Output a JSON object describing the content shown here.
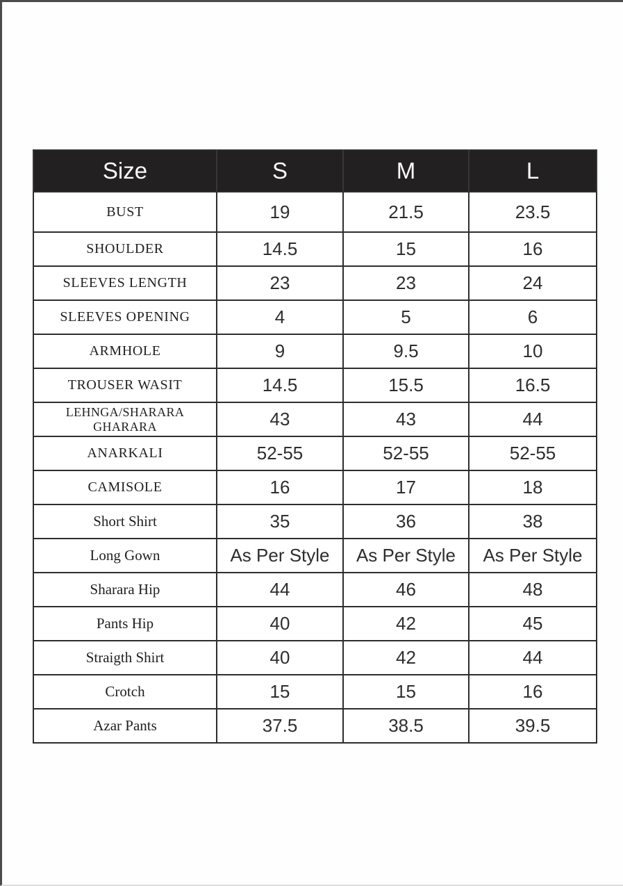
{
  "colors": {
    "page_bg": "#fefefe",
    "page_border": "#4b4b4b",
    "header_bg": "#232021",
    "header_text": "#fafafa",
    "grid_color": "#2d2d2d"
  },
  "table": {
    "header": {
      "columns": [
        "Size",
        "S",
        "M",
        "L"
      ]
    },
    "rows": [
      {
        "label": "BUST",
        "label_style": "caps",
        "values": [
          "19",
          "21.5",
          "23.5"
        ]
      },
      {
        "label": "SHOULDER",
        "label_style": "caps",
        "values": [
          "14.5",
          "15",
          "16"
        ]
      },
      {
        "label": "SLEEVES LENGTH",
        "label_style": "caps",
        "values": [
          "23",
          "23",
          "24"
        ]
      },
      {
        "label": "SLEEVES OPENING",
        "label_style": "caps",
        "values": [
          "4",
          "5",
          "6"
        ]
      },
      {
        "label": "ARMHOLE",
        "label_style": "caps",
        "values": [
          "9",
          "9.5",
          "10"
        ]
      },
      {
        "label": "TROUSER WASIT",
        "label_style": "caps",
        "values": [
          "14.5",
          "15.5",
          "16.5"
        ]
      },
      {
        "label": "LEHNGA/SHARARA\nGHARARA",
        "label_style": "caps-2line",
        "values": [
          "43",
          "43",
          "44"
        ]
      },
      {
        "label": "ANARKALI",
        "label_style": "caps",
        "values": [
          "52-55",
          "52-55",
          "52-55"
        ]
      },
      {
        "label": "CAMISOLE",
        "label_style": "caps",
        "values": [
          "16",
          "17",
          "18"
        ]
      },
      {
        "label": "Short Shirt",
        "label_style": "title",
        "values": [
          "35",
          "36",
          "38"
        ]
      },
      {
        "label": "Long Gown",
        "label_style": "title",
        "values": [
          "As Per Style",
          "As Per Style",
          "As Per Style"
        ]
      },
      {
        "label": "Sharara Hip",
        "label_style": "title",
        "values": [
          "44",
          "46",
          "48"
        ]
      },
      {
        "label": "Pants Hip",
        "label_style": "title",
        "values": [
          "40",
          "42",
          "45"
        ]
      },
      {
        "label": "Straigth Shirt",
        "label_style": "title",
        "values": [
          "40",
          "42",
          "44"
        ]
      },
      {
        "label": "Crotch",
        "label_style": "title",
        "values": [
          "15",
          "15",
          "16"
        ]
      },
      {
        "label": "Azar Pants",
        "label_style": "title",
        "values": [
          "37.5",
          "38.5",
          "39.5"
        ]
      }
    ]
  }
}
